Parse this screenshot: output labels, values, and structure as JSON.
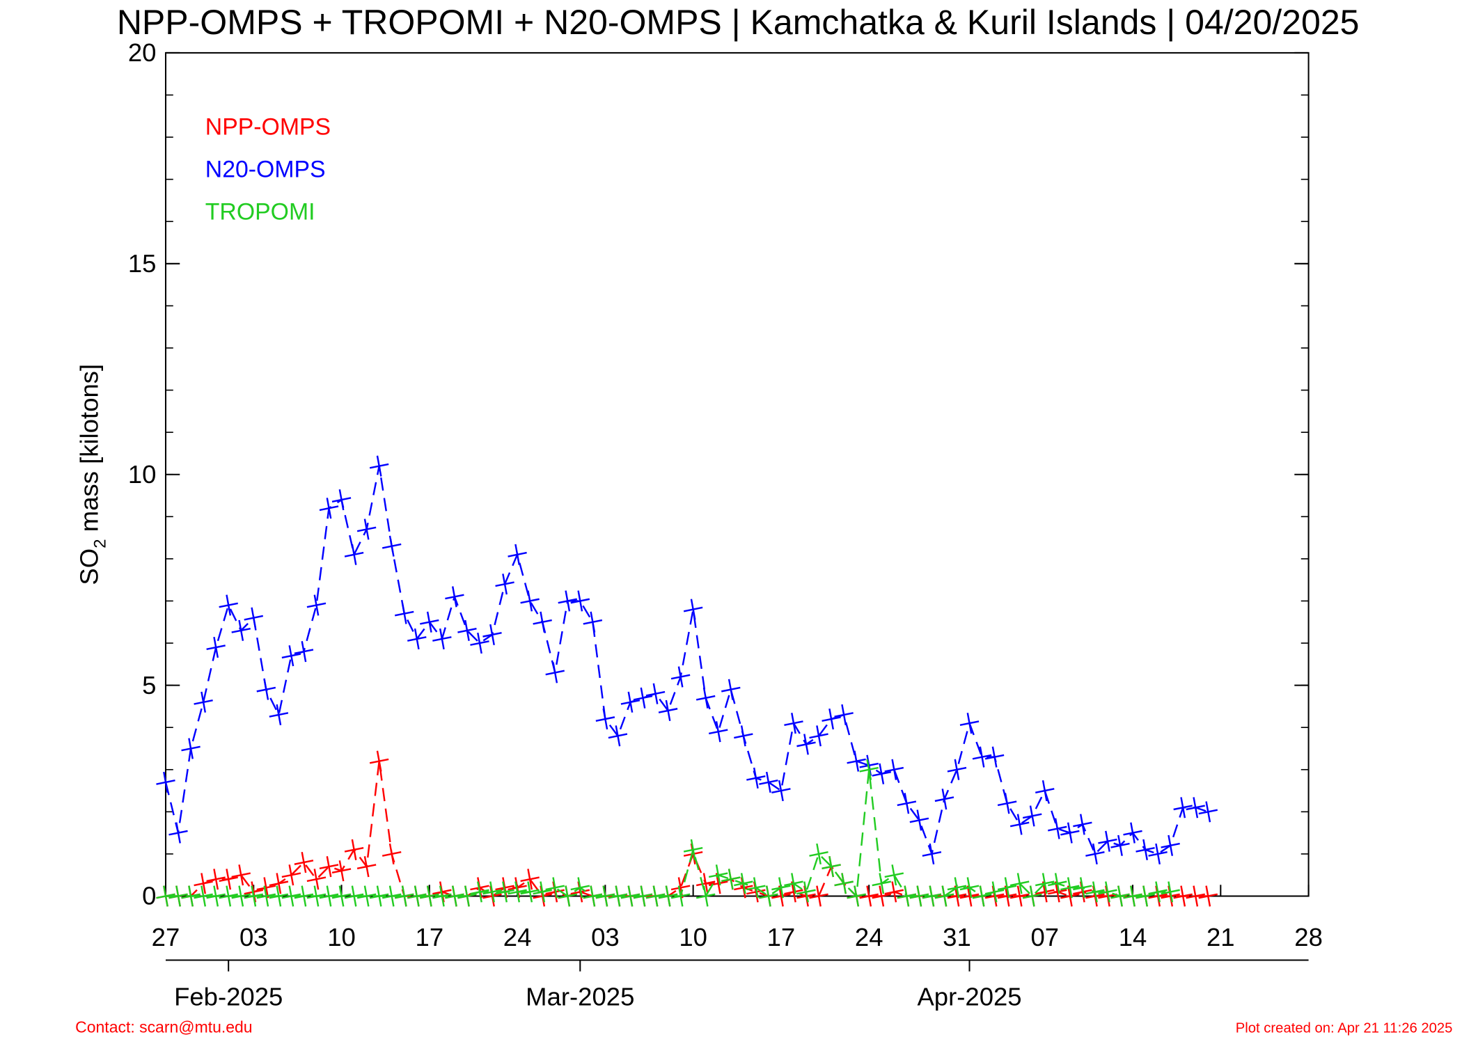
{
  "chart_data": {
    "type": "line",
    "title": "NPP-OMPS + TROPOMI + N20-OMPS | Kamchatka & Kuril Islands | 04/20/2025",
    "y_label": {
      "text": "SO",
      "subscript": "2",
      "rest": " mass [kilotons]"
    },
    "contact": "Contact: scarn@mtu.edu",
    "created": "Plot created on: Apr 21 11:26 2025",
    "x": [
      "2025-01-27",
      "2025-01-28",
      "2025-01-29",
      "2025-01-30",
      "2025-01-31",
      "2025-02-01",
      "2025-02-02",
      "2025-02-03",
      "2025-02-04",
      "2025-02-05",
      "2025-02-06",
      "2025-02-07",
      "2025-02-08",
      "2025-02-09",
      "2025-02-10",
      "2025-02-11",
      "2025-02-12",
      "2025-02-13",
      "2025-02-14",
      "2025-02-15",
      "2025-02-16",
      "2025-02-17",
      "2025-02-18",
      "2025-02-19",
      "2025-02-20",
      "2025-02-21",
      "2025-02-22",
      "2025-02-23",
      "2025-02-24",
      "2025-02-25",
      "2025-02-26",
      "2025-02-27",
      "2025-02-28",
      "2025-03-01",
      "2025-03-02",
      "2025-03-03",
      "2025-03-04",
      "2025-03-05",
      "2025-03-06",
      "2025-03-07",
      "2025-03-08",
      "2025-03-09",
      "2025-03-10",
      "2025-03-11",
      "2025-03-12",
      "2025-03-13",
      "2025-03-14",
      "2025-03-15",
      "2025-03-16",
      "2025-03-17",
      "2025-03-18",
      "2025-03-19",
      "2025-03-20",
      "2025-03-21",
      "2025-03-22",
      "2025-03-23",
      "2025-03-24",
      "2025-03-25",
      "2025-03-26",
      "2025-03-27",
      "2025-03-28",
      "2025-03-29",
      "2025-03-30",
      "2025-03-31",
      "2025-04-01",
      "2025-04-02",
      "2025-04-03",
      "2025-04-04",
      "2025-04-05",
      "2025-04-06",
      "2025-04-07",
      "2025-04-08",
      "2025-04-09",
      "2025-04-10",
      "2025-04-11",
      "2025-04-12",
      "2025-04-13",
      "2025-04-14",
      "2025-04-15",
      "2025-04-16",
      "2025-04-17",
      "2025-04-18",
      "2025-04-19",
      "2025-04-20"
    ],
    "series": [
      {
        "name": "NPP-OMPS",
        "color": "#ff0000",
        "values": [
          0,
          0,
          0,
          0.3,
          0.4,
          0.4,
          0.5,
          0.1,
          0.2,
          0.3,
          0.5,
          0.8,
          0.4,
          0.7,
          0.6,
          1.1,
          0.7,
          3.2,
          1.0,
          0,
          0,
          0,
          0.1,
          0,
          0,
          0.2,
          0,
          0.2,
          0.2,
          0.4,
          0,
          0.1,
          0,
          0.1,
          0,
          0,
          0,
          0,
          0,
          0,
          0,
          0.2,
          1.0,
          0.3,
          0.3,
          0.4,
          0.2,
          0.1,
          0,
          0,
          0.1,
          0,
          0,
          0.7,
          0.3,
          0,
          0,
          0,
          0.1,
          0,
          0,
          0,
          0,
          0,
          0,
          0,
          0,
          0,
          0,
          0,
          0.1,
          0.1,
          0,
          0.1,
          0,
          0,
          0,
          0,
          0,
          0,
          0,
          0,
          0,
          0
        ]
      },
      {
        "name": "N20-OMPS",
        "color": "#0000ff",
        "values": [
          2.7,
          1.5,
          3.5,
          4.6,
          5.9,
          6.9,
          6.3,
          6.6,
          4.9,
          4.3,
          5.7,
          5.8,
          6.9,
          9.2,
          9.4,
          8.1,
          8.7,
          10.2,
          8.3,
          6.7,
          6.1,
          6.5,
          6.1,
          7.1,
          6.3,
          6.0,
          6.2,
          7.4,
          8.1,
          7.0,
          6.5,
          5.3,
          7.0,
          7.0,
          6.5,
          4.2,
          3.8,
          4.6,
          4.7,
          4.8,
          4.4,
          5.2,
          6.8,
          4.7,
          3.9,
          4.9,
          3.8,
          2.8,
          2.7,
          2.5,
          4.1,
          3.6,
          3.8,
          4.2,
          4.3,
          3.2,
          3.1,
          2.9,
          3.0,
          2.2,
          1.8,
          1.0,
          2.3,
          3.0,
          4.1,
          3.3,
          3.3,
          2.2,
          1.7,
          1.9,
          2.5,
          1.6,
          1.5,
          1.7,
          1.0,
          1.3,
          1.2,
          1.5,
          1.1,
          1.0,
          1.2,
          2.1,
          2.1,
          2.0
        ]
      },
      {
        "name": "TROPOMI",
        "color": "#22cc22",
        "values": [
          0,
          0,
          0,
          0,
          0,
          0,
          0,
          0,
          0,
          0,
          0,
          0,
          0,
          0,
          0,
          0,
          0,
          0,
          0,
          0,
          0,
          0,
          0,
          0,
          0,
          0.1,
          0.1,
          0.1,
          0.1,
          0.1,
          0.1,
          0.2,
          0,
          0.2,
          0,
          0,
          0,
          0,
          0,
          0,
          0,
          0,
          1.1,
          0,
          0.5,
          0.4,
          0.3,
          0.2,
          0,
          0.2,
          0.3,
          0.1,
          1.0,
          0.7,
          0.3,
          0,
          3.0,
          0.3,
          0.5,
          0,
          0,
          0,
          0,
          0.2,
          0.2,
          0,
          0.1,
          0.2,
          0.3,
          0,
          0.3,
          0.3,
          0.2,
          0.2,
          0.1,
          0.1,
          0,
          0,
          0,
          0.1,
          0.1,
          null,
          null,
          null
        ]
      }
    ],
    "xlim": [
      "2025-01-27",
      "2025-04-28"
    ],
    "xticks": [
      {
        "value": "2025-01-27",
        "label": "27"
      },
      {
        "value": "2025-02-03",
        "label": "03"
      },
      {
        "value": "2025-02-10",
        "label": "10"
      },
      {
        "value": "2025-02-17",
        "label": "17"
      },
      {
        "value": "2025-02-24",
        "label": "24"
      },
      {
        "value": "2025-03-03",
        "label": "03"
      },
      {
        "value": "2025-03-10",
        "label": "10"
      },
      {
        "value": "2025-03-17",
        "label": "17"
      },
      {
        "value": "2025-03-24",
        "label": "24"
      },
      {
        "value": "2025-03-31",
        "label": "31"
      },
      {
        "value": "2025-04-07",
        "label": "07"
      },
      {
        "value": "2025-04-14",
        "label": "14"
      },
      {
        "value": "2025-04-21",
        "label": "21"
      },
      {
        "value": "2025-04-28",
        "label": "28"
      }
    ],
    "month_ticks": [
      {
        "value": "2025-02-01",
        "label": "Feb-2025"
      },
      {
        "value": "2025-03-01",
        "label": "Mar-2025"
      },
      {
        "value": "2025-04-01",
        "label": "Apr-2025"
      }
    ],
    "ylim": [
      0,
      20
    ],
    "yticks": [
      0,
      5,
      10,
      15,
      20
    ]
  }
}
